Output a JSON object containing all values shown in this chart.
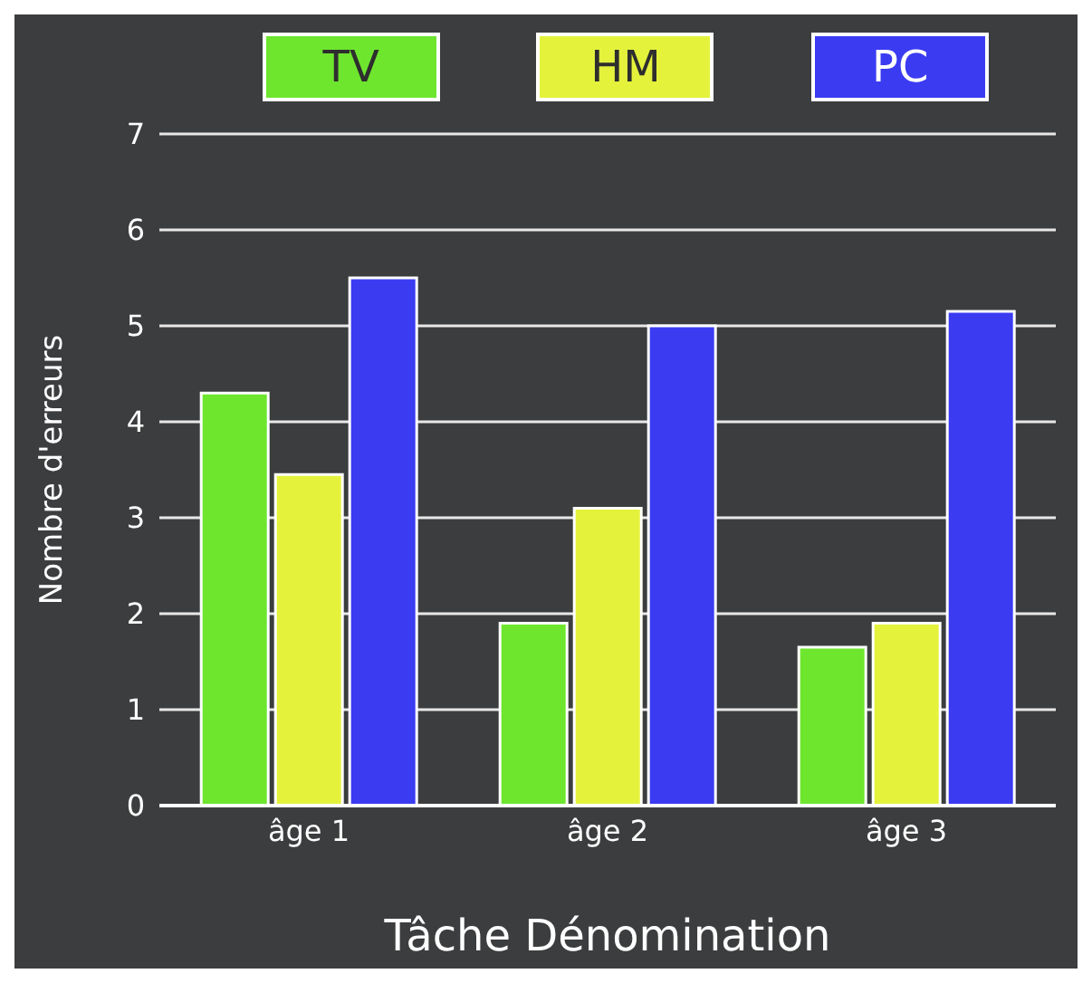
{
  "chart_data": {
    "type": "bar",
    "xlabel": "Tâche Dénomination",
    "ylabel": "Nombre d'erreurs",
    "categories": [
      "âge 1",
      "âge 2",
      "âge 3"
    ],
    "series": [
      {
        "name": "TV",
        "color": "#6ee62e",
        "values": [
          4.3,
          1.9,
          1.65
        ]
      },
      {
        "name": "HM",
        "color": "#e4f23c",
        "values": [
          3.45,
          3.1,
          1.9
        ]
      },
      {
        "name": "PC",
        "color": "#3b3bf2",
        "values": [
          5.5,
          5.0,
          5.15
        ]
      }
    ],
    "ylim": [
      0,
      7
    ],
    "yticks": [
      0,
      1,
      2,
      3,
      4,
      5,
      6,
      7
    ],
    "grid": "y",
    "legend": "top"
  }
}
